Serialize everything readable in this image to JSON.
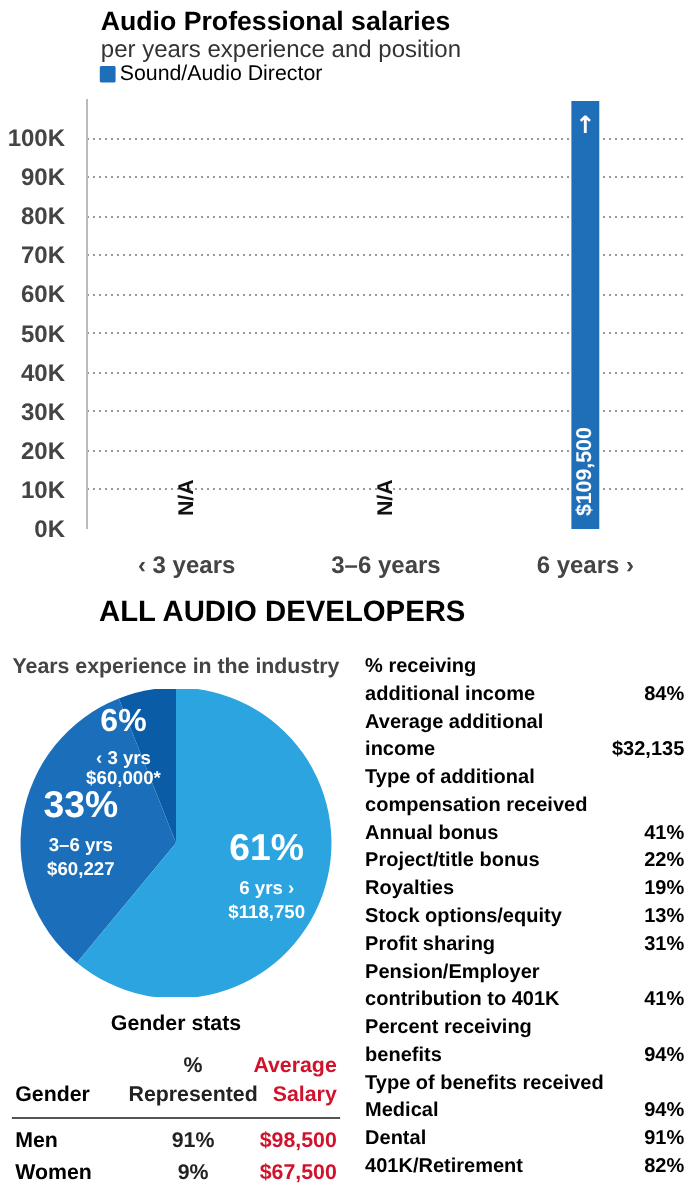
{
  "chart_data": [
    {
      "type": "bar",
      "title": "Audio Professional salaries",
      "subtitle": "per years experience and position",
      "categories": [
        "‹ 3 years",
        "3–6 years",
        "6 years ›"
      ],
      "series": [
        {
          "name": "Sound/Audio Director",
          "color": "#1f6fb8",
          "values": [
            null,
            null,
            109500
          ],
          "value_labels": [
            "N/A",
            "N/A",
            "$109,500"
          ]
        }
      ],
      "ylim": [
        0,
        110000
      ],
      "yticks": [
        {
          "value": 0,
          "label": "0K"
        },
        {
          "value": 10000,
          "label": "10K"
        },
        {
          "value": 20000,
          "label": "20K"
        },
        {
          "value": 30000,
          "label": "30K"
        },
        {
          "value": 40000,
          "label": "40K"
        },
        {
          "value": 50000,
          "label": "50K"
        },
        {
          "value": 60000,
          "label": "60K"
        },
        {
          "value": 70000,
          "label": "70K"
        },
        {
          "value": 80000,
          "label": "80K"
        },
        {
          "value": 90000,
          "label": "90K"
        },
        {
          "value": 100000,
          "label": "100K"
        }
      ],
      "grid": "y",
      "legend": "top left",
      "annotations": [
        "↑"
      ]
    },
    {
      "type": "pie",
      "title": "ALL AUDIO DEVELOPERS",
      "subtitle": "Years experience in the industry",
      "categories": [
        "‹ 3 yrs",
        "3–6 yrs",
        "6 yrs ›"
      ],
      "values": [
        6,
        33,
        61
      ],
      "colors": [
        "#0b5ca6",
        "#1b6fba",
        "#2ba4e0"
      ],
      "value_labels": [
        "6%",
        "33%",
        "61%"
      ],
      "annotations": [
        "$60,000*",
        "$60,227",
        "$118,750"
      ]
    },
    {
      "type": "other",
      "title": "Gender stats",
      "xlabel": "Gender",
      "categories": [
        "Men",
        "Women"
      ],
      "series": [
        {
          "name": "% Represented",
          "color": "#222222",
          "values": [
            91,
            9
          ],
          "value_labels": [
            "91%",
            "9%"
          ]
        },
        {
          "name": "Average Salary",
          "color": "#d0122c",
          "values": [
            98500,
            67500
          ],
          "value_labels": [
            "$98,500",
            "$67,500"
          ]
        }
      ]
    },
    {
      "type": "other",
      "categories": [
        "% receiving additional income",
        "Average additional income",
        "Type of additional compensation received",
        "Annual bonus",
        "Project/title bonus",
        "Royalties",
        "Stock options/equity",
        "Profit sharing",
        "Pension/Employer contribution to 401K",
        "Percent receiving benefits",
        "Type of benefits received",
        "Medical",
        "Dental",
        "401K/Retirement"
      ],
      "value_labels": [
        "84%",
        "$32,135",
        null,
        "41%",
        "22%",
        "19%",
        "13%",
        "31%",
        "41%",
        "94%",
        null,
        "94%",
        "91%",
        "82%"
      ]
    }
  ]
}
